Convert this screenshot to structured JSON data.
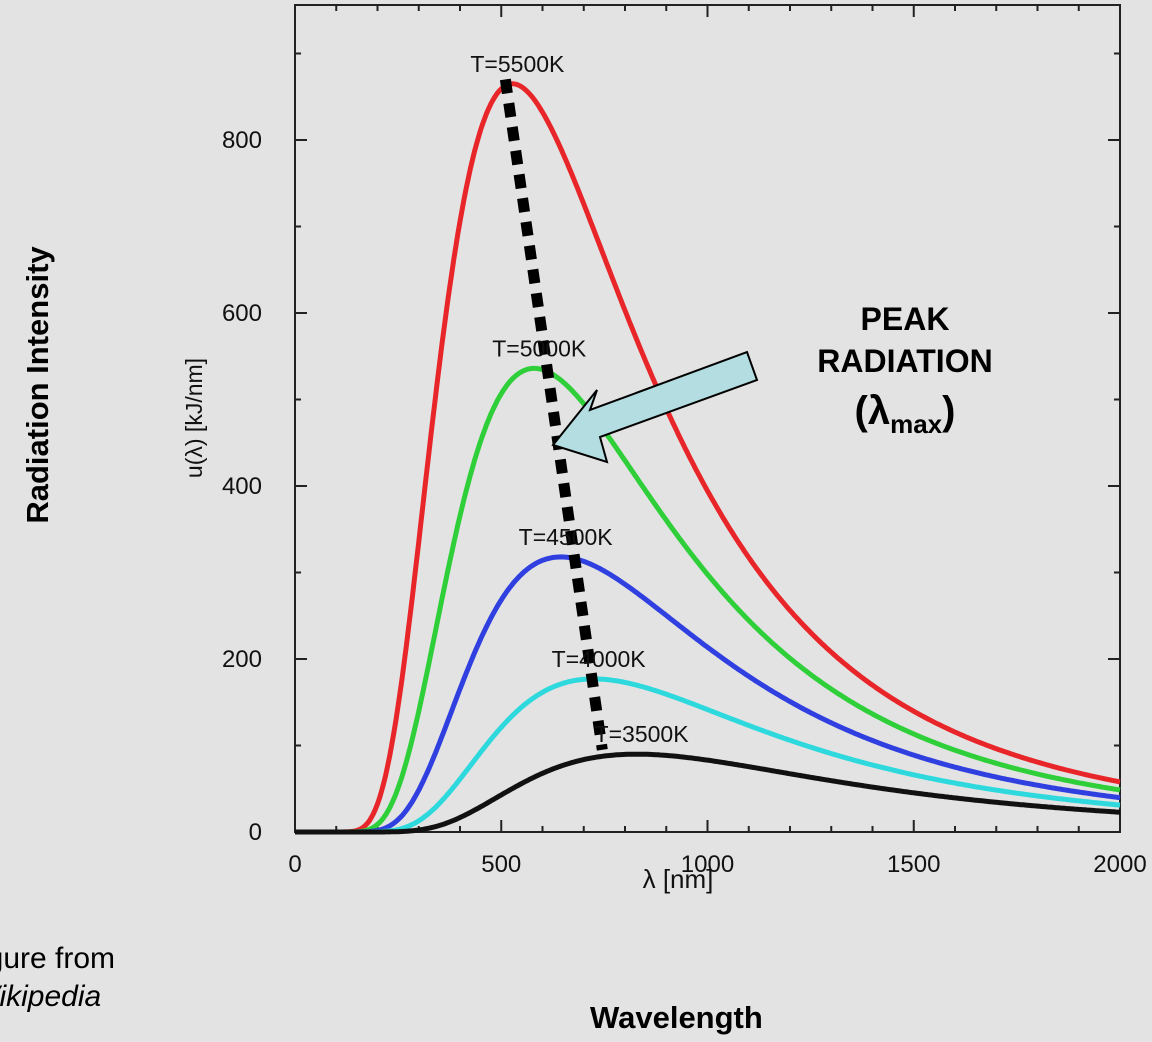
{
  "chart_data": {
    "type": "line",
    "xlabel": "λ [nm]",
    "ylabel": "u(λ) [kJ/nm]",
    "xlim": [
      0,
      2000
    ],
    "ylim": [
      0,
      910
    ],
    "x_ticks": [
      0,
      500,
      1000,
      1500,
      2000
    ],
    "y_ticks": [
      0,
      200,
      400,
      600,
      800
    ],
    "grid": false,
    "series": [
      {
        "name": "T=5500K",
        "temperature": 5500,
        "peak": [
          527,
          865
        ],
        "color": "#e8262a"
      },
      {
        "name": "T=5000K",
        "temperature": 5000,
        "peak": [
          580,
          536
        ],
        "color": "#2fcf3a"
      },
      {
        "name": "T=4500K",
        "temperature": 4500,
        "peak": [
          644,
          318
        ],
        "color": "#2f3fe0"
      },
      {
        "name": "T=4000K",
        "temperature": 4000,
        "peak": [
          724,
          177
        ],
        "color": "#2ed9dd"
      },
      {
        "name": "T=3500K",
        "temperature": 3500,
        "peak": [
          828,
          90
        ],
        "color": "#111111"
      }
    ],
    "peak_trend_line": {
      "from": [
        510,
        870
      ],
      "to": [
        745,
        95
      ]
    }
  },
  "annotation": {
    "line1": "PEAK",
    "line2": "RADIATION",
    "symbol": "(λ",
    "subscript": "max",
    "close": ")",
    "arrow_color": "#b3dde0"
  },
  "outer_labels": {
    "y": "Radiation Intensity",
    "x": "Wavelength"
  },
  "credit": {
    "line1": "igure from",
    "line2": "Vikipedia"
  }
}
